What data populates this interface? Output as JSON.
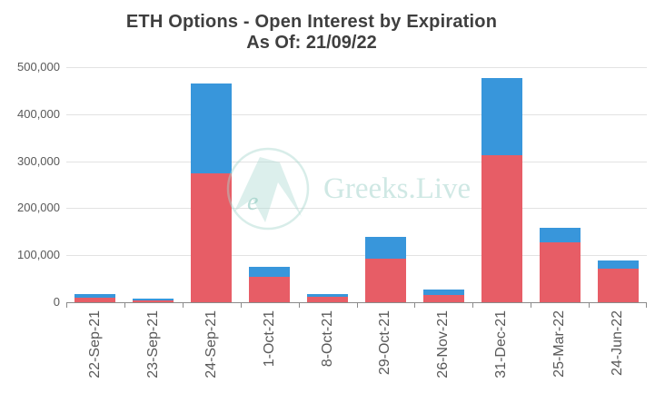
{
  "watermark": {
    "text": "Greeks.Live",
    "logo_icon": "greeks-live-logo"
  },
  "colors": {
    "red_series": "#e75d66",
    "blue_series": "#3896db",
    "gridline": "#e2e2e2",
    "axis": "#8a8a8a",
    "title_text": "#3f3f3f",
    "tick_text": "#595959",
    "watermark": "#a8d6ce"
  },
  "chart_data": {
    "type": "bar",
    "stacked": true,
    "title": "ETH Options - Open Interest by Expiration",
    "subtitle": "As Of: 21/09/22",
    "categories": [
      "22-Sep-21",
      "23-Sep-21",
      "24-Sep-21",
      "1-Oct-21",
      "8-Oct-21",
      "29-Oct-21",
      "26-Nov-21",
      "31-Dec-21",
      "25-Mar-22",
      "24-Jun-22"
    ],
    "series": [
      {
        "name": "red (bottom segment)",
        "color": "#e75d66",
        "values": [
          10000,
          4000,
          275000,
          55000,
          12000,
          92000,
          16000,
          313000,
          128000,
          72000
        ]
      },
      {
        "name": "blue (top segment)",
        "color": "#3896db",
        "values": [
          8000,
          4000,
          190000,
          21000,
          6000,
          47000,
          11000,
          163000,
          31000,
          16000
        ]
      }
    ],
    "totals": [
      18000,
      8000,
      465000,
      76000,
      18000,
      139000,
      27000,
      476000,
      159000,
      88000
    ],
    "xlabel": "",
    "ylabel": "",
    "ylim": [
      0,
      500000
    ],
    "y_ticks": [
      {
        "value": 0,
        "label": "0"
      },
      {
        "value": 100000,
        "label": "100,000"
      },
      {
        "value": 200000,
        "label": "200,000"
      },
      {
        "value": 300000,
        "label": "300,000"
      },
      {
        "value": 400000,
        "label": "400,000"
      },
      {
        "value": 500000,
        "label": "500,000"
      }
    ],
    "grid": "horizontal",
    "legend": "none"
  }
}
